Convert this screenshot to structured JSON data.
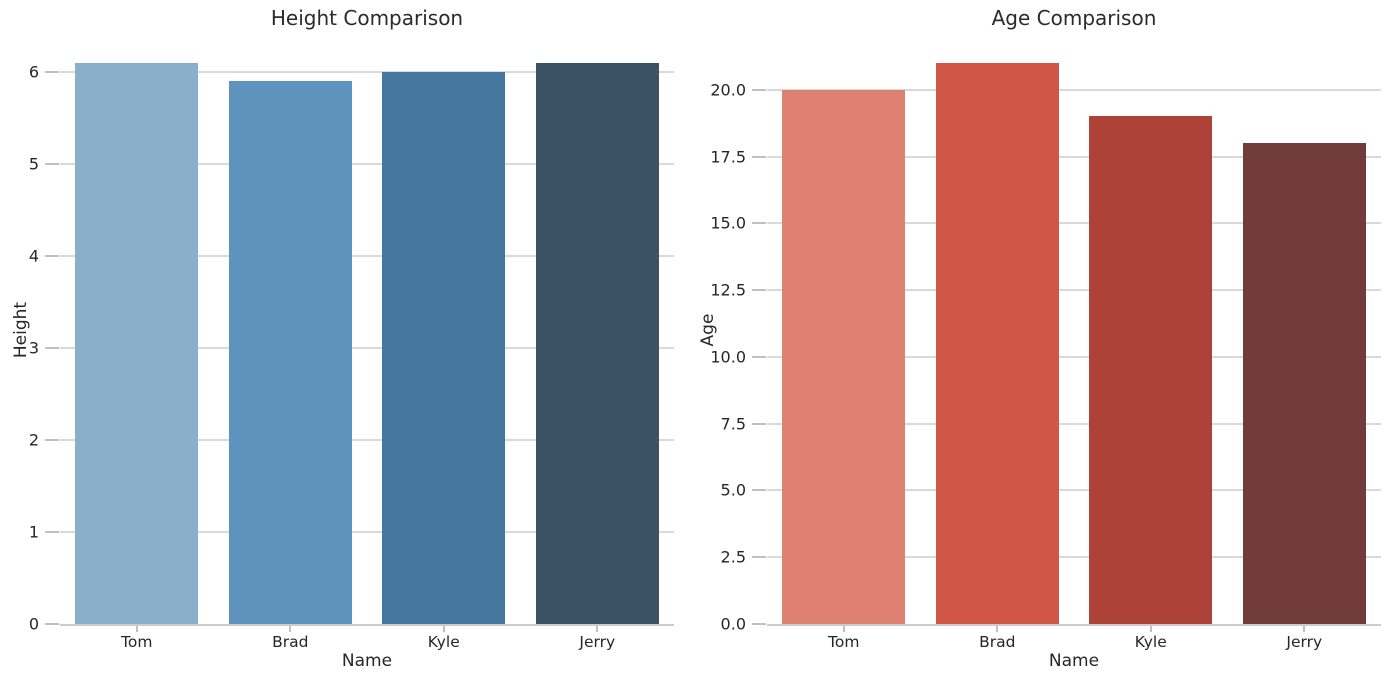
{
  "figure": {
    "background": "#ffffff",
    "text_color": "#262626",
    "grid_color": "#d9d9d9",
    "baseline_color": "#cbcbcb",
    "tick_color": "#c0c0c0"
  },
  "chart_data": [
    {
      "type": "bar",
      "title": "Height Comparison",
      "xlabel": "Name",
      "ylabel": "Height",
      "categories": [
        "Tom",
        "Brad",
        "Kyle",
        "Jerry"
      ],
      "values": [
        6.1,
        5.9,
        6.0,
        6.1
      ],
      "ylim": [
        0,
        6.405
      ],
      "yticks": [
        0,
        1,
        2,
        3,
        4,
        5,
        6
      ],
      "ytick_labels": [
        "0",
        "1",
        "2",
        "3",
        "4",
        "5",
        "6"
      ],
      "bar_colors": [
        "#8aafcb",
        "#5d93bd",
        "#45779e",
        "#3b5164"
      ],
      "grid": true,
      "legend": null
    },
    {
      "type": "bar",
      "title": "Age Comparison",
      "xlabel": "Name",
      "ylabel": "Age",
      "categories": [
        "Tom",
        "Brad",
        "Kyle",
        "Jerry"
      ],
      "values": [
        20,
        21,
        19,
        18
      ],
      "ylim": [
        0,
        22.05
      ],
      "yticks": [
        0,
        2.5,
        5,
        7.5,
        10,
        12.5,
        15,
        17.5,
        20
      ],
      "ytick_labels": [
        "0.0",
        "2.5",
        "5.0",
        "7.5",
        "10.0",
        "12.5",
        "15.0",
        "17.5",
        "20.0"
      ],
      "bar_colors": [
        "#de8172",
        "#d05648",
        "#ad4238",
        "#703b38"
      ],
      "grid": true,
      "legend": null
    }
  ]
}
